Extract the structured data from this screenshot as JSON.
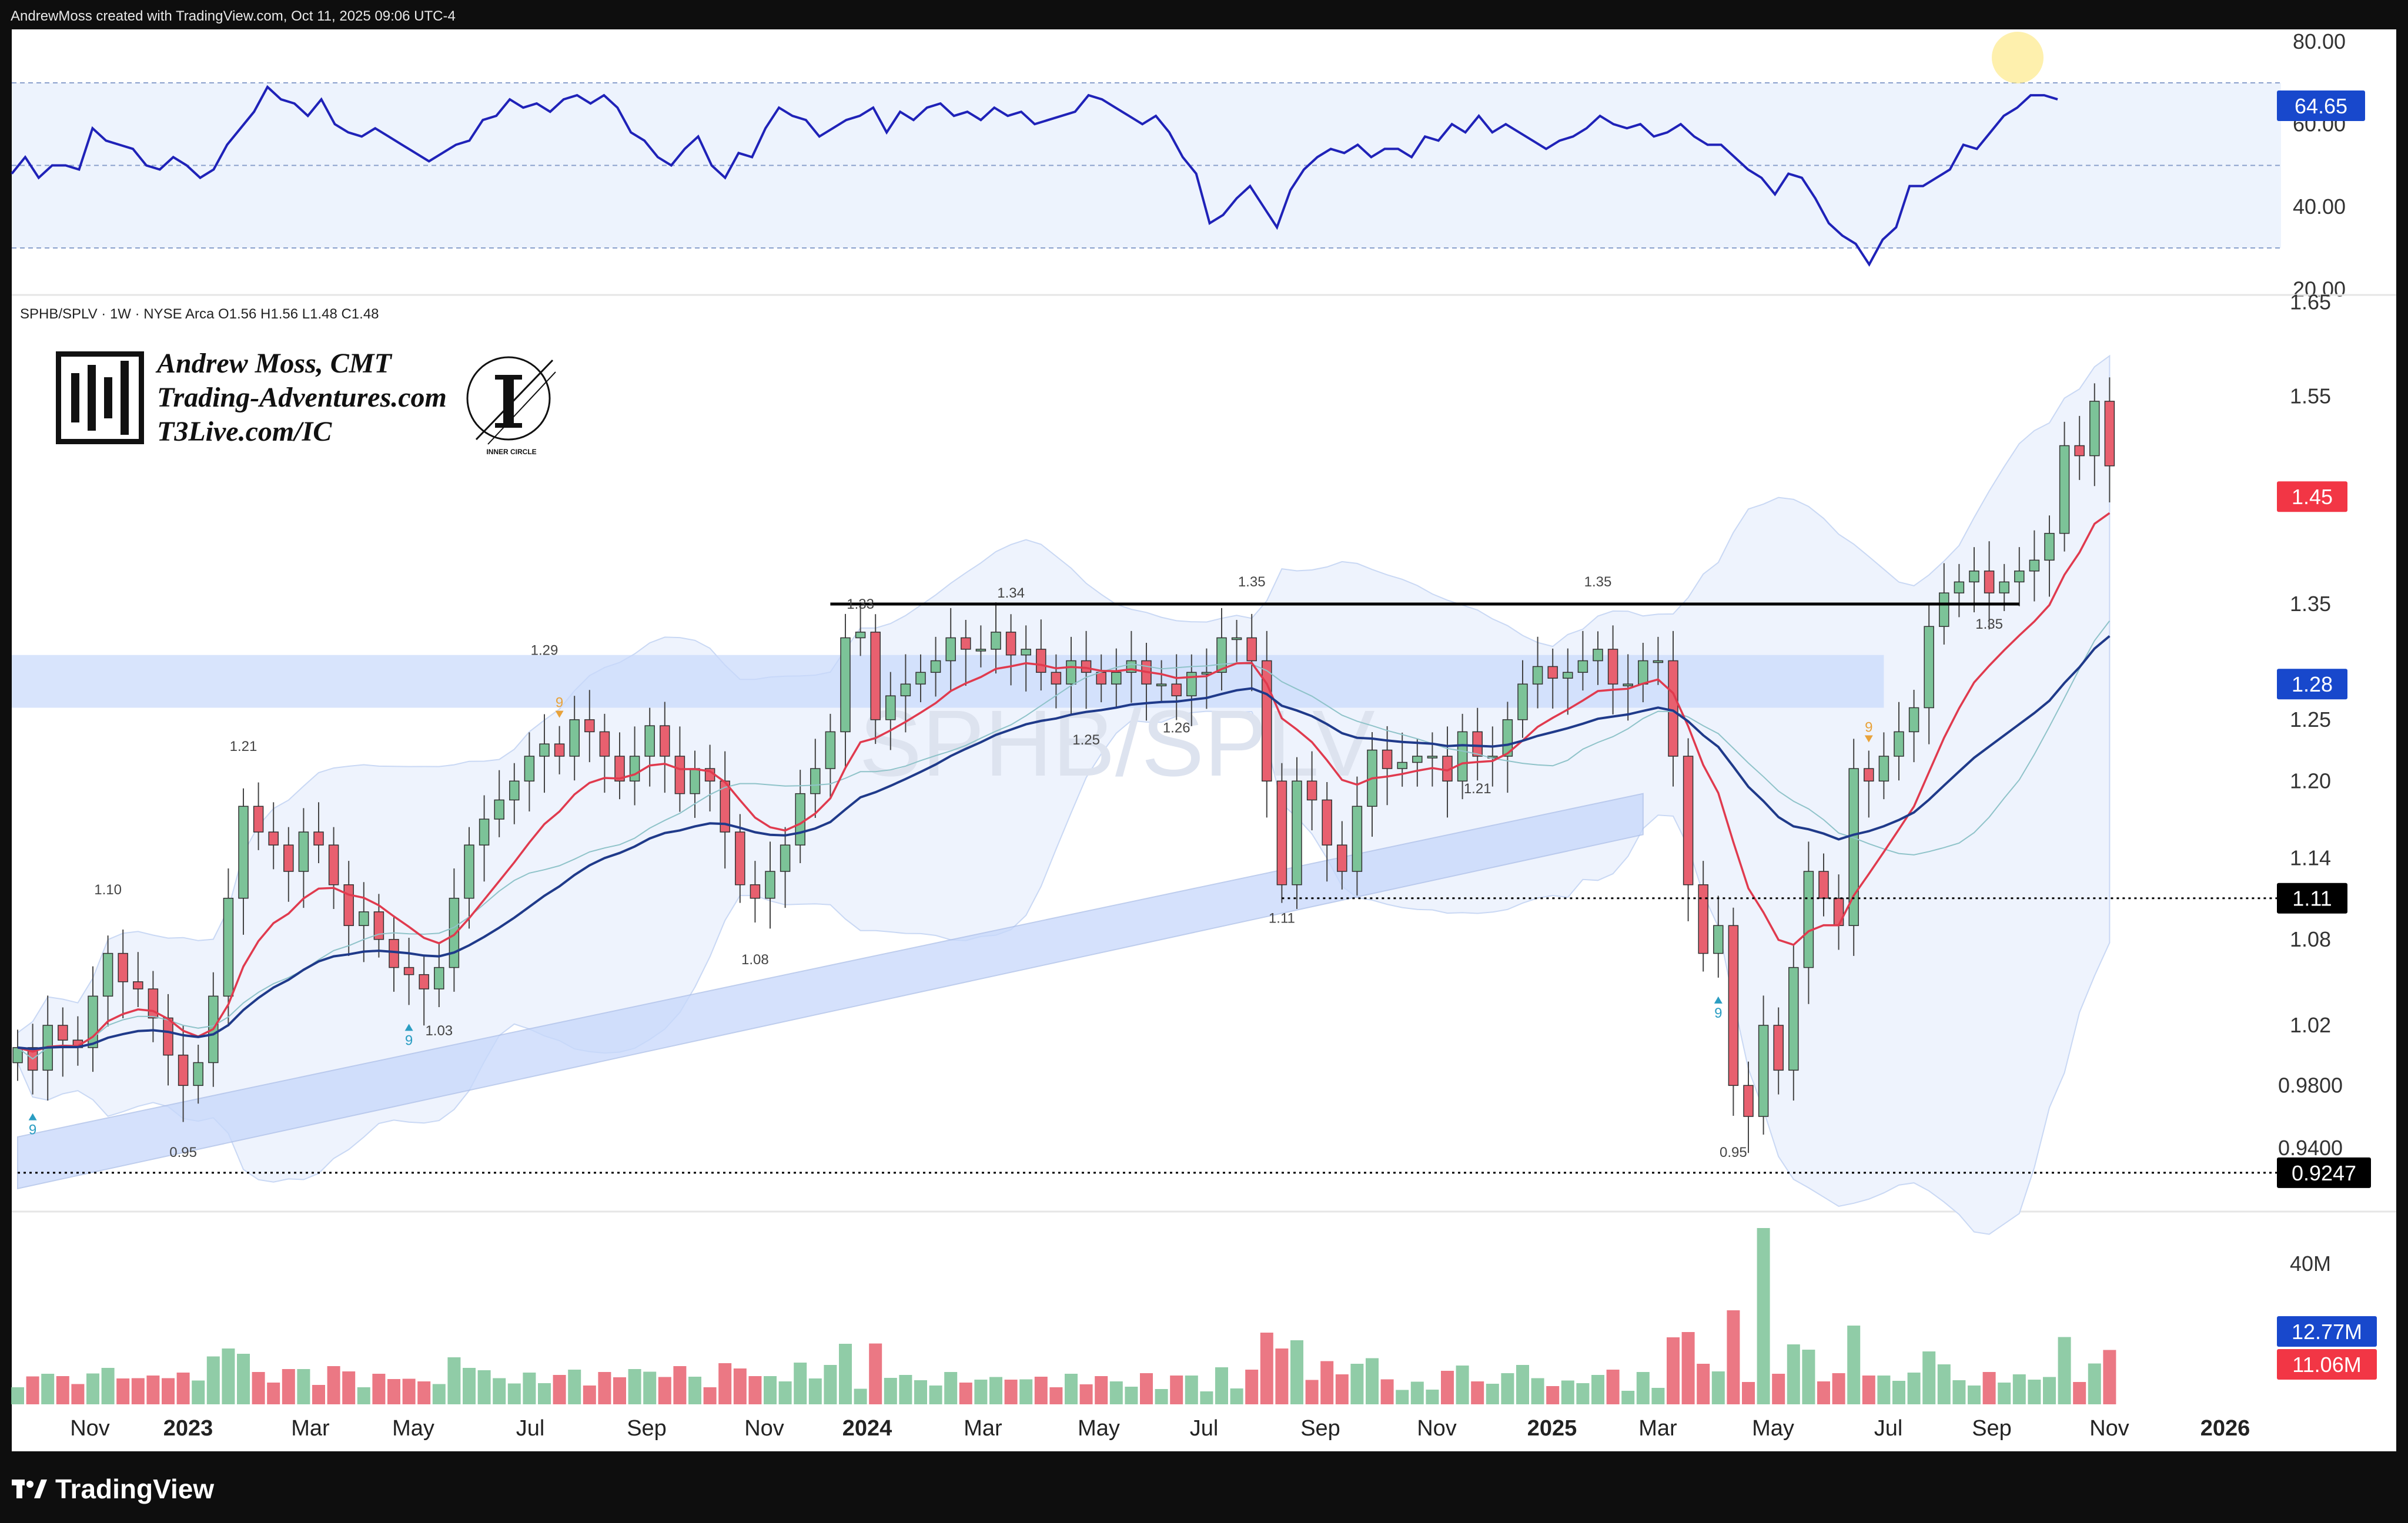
{
  "header": {
    "attribution": "AndrewMoss created with TradingView.com, Oct 11, 2025 09:06 UTC-4"
  },
  "symbol_line": "SPHB/SPLV · 1W · NYSE Arca  O1.56  H1.56  L1.48  C1.48",
  "author": {
    "line1": "Andrew Moss, CMT",
    "line2": "Trading-Adventures.com",
    "line3": "T3Live.com/IC",
    "seal_text": "INNER CIRCLE"
  },
  "footer": {
    "brand": "TradingView"
  },
  "colors": {
    "up": "#7cc398",
    "down": "#e8606f",
    "ema_fast": "#e03a4e",
    "ema_slow": "#1f3a8a",
    "rsi_line": "#1f22b8",
    "band_fill": "#dde8fb",
    "zone": "#c7d8fb",
    "price_badge_red": "#f23645",
    "price_badge_blue": "#1848cc",
    "price_badge_black": "#000000"
  },
  "chart_data": {
    "type": "candlestick",
    "timeframe": "1W",
    "x_labels": [
      "Nov",
      "2023",
      "Mar",
      "May",
      "Jul",
      "Sep",
      "Nov",
      "2024",
      "Mar",
      "May",
      "Jul",
      "Sep",
      "Nov",
      "2025",
      "Mar",
      "May",
      "Jul",
      "Sep",
      "Nov",
      "2026"
    ],
    "price_axis": {
      "ticks": [
        "1.65",
        "1.55",
        "1.45",
        "1.35",
        "1.25",
        "1.20",
        "1.14",
        "1.08",
        "1.02",
        "0.9800",
        "0.9400"
      ],
      "range": [
        0.92,
        1.65
      ],
      "scale": "log"
    },
    "price_badges": [
      {
        "label": "1.45",
        "value": 1.45,
        "color": "red"
      },
      {
        "label": "1.28",
        "value": 1.28,
        "color": "blue"
      },
      {
        "label": "1.11",
        "value": 1.11,
        "color": "black"
      },
      {
        "label": "0.9247",
        "value": 0.9247,
        "color": "black"
      }
    ],
    "pivot_labels": [
      {
        "text": "1.21",
        "i": 15,
        "v": 1.21,
        "pos": "above"
      },
      {
        "text": "1.10",
        "i": 6,
        "v": 1.1,
        "pos": "above"
      },
      {
        "text": "0.95",
        "i": 11,
        "v": 0.95,
        "pos": "below"
      },
      {
        "text": "1.03",
        "i": 28,
        "v": 1.03,
        "pos": "below"
      },
      {
        "text": "1.29",
        "i": 35,
        "v": 1.29,
        "pos": "above"
      },
      {
        "text": "1.08",
        "i": 49,
        "v": 1.08,
        "pos": "below"
      },
      {
        "text": "1.33",
        "i": 56,
        "v": 1.33,
        "pos": "above"
      },
      {
        "text": "1.34",
        "i": 66,
        "v": 1.34,
        "pos": "above"
      },
      {
        "text": "1.25",
        "i": 71,
        "v": 1.25,
        "pos": "below"
      },
      {
        "text": "1.26",
        "i": 77,
        "v": 1.26,
        "pos": "below"
      },
      {
        "text": "1.35",
        "i": 82,
        "v": 1.35,
        "pos": "above"
      },
      {
        "text": "1.11",
        "i": 84,
        "v": 1.11,
        "pos": "below"
      },
      {
        "text": "1.21",
        "i": 97,
        "v": 1.21,
        "pos": "below"
      },
      {
        "text": "1.35",
        "i": 105,
        "v": 1.35,
        "pos": "above"
      },
      {
        "text": "0.95",
        "i": 114,
        "v": 0.95,
        "pos": "below"
      },
      {
        "text": "1.35",
        "i": 131,
        "v": 1.35,
        "pos": "below"
      }
    ],
    "setup_markers": [
      {
        "text": "9",
        "i": 1,
        "dir": "up"
      },
      {
        "text": "9",
        "i": 26,
        "dir": "up"
      },
      {
        "text": "9",
        "i": 36,
        "dir": "down"
      },
      {
        "text": "9",
        "i": 113,
        "dir": "up"
      },
      {
        "text": "9",
        "i": 123,
        "dir": "down"
      }
    ],
    "resistance_line": {
      "value": 1.35,
      "from_i": 54,
      "to_i": 133
    },
    "zone": {
      "low": 1.26,
      "high": 1.305,
      "to_i": 124
    },
    "support_dotted": [
      {
        "value": 1.11,
        "from_i": 84
      },
      {
        "value": 0.9247,
        "from_i": 0
      }
    ],
    "candles_close": [
      1.005,
      0.99,
      1.02,
      1.01,
      1.005,
      1.04,
      1.07,
      1.05,
      1.045,
      1.025,
      1.0,
      0.98,
      0.995,
      1.04,
      1.11,
      1.18,
      1.16,
      1.15,
      1.13,
      1.16,
      1.15,
      1.12,
      1.09,
      1.1,
      1.08,
      1.06,
      1.055,
      1.045,
      1.06,
      1.11,
      1.15,
      1.17,
      1.185,
      1.2,
      1.22,
      1.23,
      1.22,
      1.25,
      1.24,
      1.22,
      1.2,
      1.22,
      1.245,
      1.22,
      1.19,
      1.21,
      1.2,
      1.16,
      1.12,
      1.11,
      1.13,
      1.15,
      1.19,
      1.21,
      1.24,
      1.32,
      1.325,
      1.25,
      1.27,
      1.28,
      1.29,
      1.3,
      1.32,
      1.31,
      1.31,
      1.325,
      1.305,
      1.31,
      1.29,
      1.28,
      1.3,
      1.29,
      1.28,
      1.29,
      1.3,
      1.28,
      1.28,
      1.27,
      1.29,
      1.29,
      1.32,
      1.32,
      1.3,
      1.2,
      1.12,
      1.2,
      1.185,
      1.15,
      1.13,
      1.18,
      1.225,
      1.21,
      1.215,
      1.22,
      1.22,
      1.2,
      1.24,
      1.22,
      1.22,
      1.25,
      1.28,
      1.295,
      1.285,
      1.29,
      1.3,
      1.31,
      1.28,
      1.28,
      1.3,
      1.3,
      1.22,
      1.12,
      1.07,
      1.09,
      0.98,
      0.96,
      1.02,
      0.99,
      1.06,
      1.13,
      1.11,
      1.09,
      1.21,
      1.2,
      1.22,
      1.24,
      1.26,
      1.33,
      1.36,
      1.37,
      1.38,
      1.36,
      1.37,
      1.38,
      1.39,
      1.415,
      1.5,
      1.49,
      1.545,
      1.48
    ],
    "rsi": {
      "ticks": [
        "80.00",
        "60.00",
        "40.00",
        "20.00"
      ],
      "range": [
        20,
        80
      ],
      "overbought": 70,
      "mid": 50,
      "oversold": 30,
      "current_label": "64.65",
      "values": [
        48,
        52,
        47,
        50,
        50,
        49,
        59,
        56,
        55,
        54,
        50,
        49,
        52,
        50,
        47,
        49,
        55,
        59,
        63,
        69,
        66,
        65,
        62,
        66,
        60,
        58,
        57,
        59,
        57,
        55,
        53,
        51,
        53,
        55,
        56,
        61,
        62,
        66,
        64,
        65,
        63,
        66,
        67,
        65,
        67,
        64,
        58,
        56,
        52,
        50,
        54,
        57,
        50,
        47,
        53,
        52,
        59,
        64,
        62,
        61,
        57,
        59,
        61,
        62,
        64,
        58,
        63,
        61,
        64,
        65,
        62,
        63,
        61,
        64,
        62,
        63,
        60,
        61,
        62,
        63,
        67,
        66,
        64,
        62,
        60,
        62,
        58,
        52,
        48,
        36,
        38,
        42,
        45,
        40,
        35,
        44,
        49,
        52,
        54,
        53,
        55,
        52,
        54,
        54,
        52,
        57,
        56,
        60,
        58,
        62,
        58,
        60,
        58,
        56,
        54,
        56,
        57,
        59,
        62,
        60,
        59,
        60,
        57,
        58,
        60,
        57,
        55,
        55,
        52,
        49,
        47,
        43,
        48,
        47,
        42,
        36,
        33,
        31,
        26,
        32,
        35,
        45,
        45,
        47,
        49,
        55,
        54,
        58,
        62,
        64,
        67,
        67,
        66
      ]
    },
    "volume": {
      "ticks": [
        "40M"
      ],
      "labels": [
        "12.77M",
        "11.06M"
      ]
    }
  }
}
